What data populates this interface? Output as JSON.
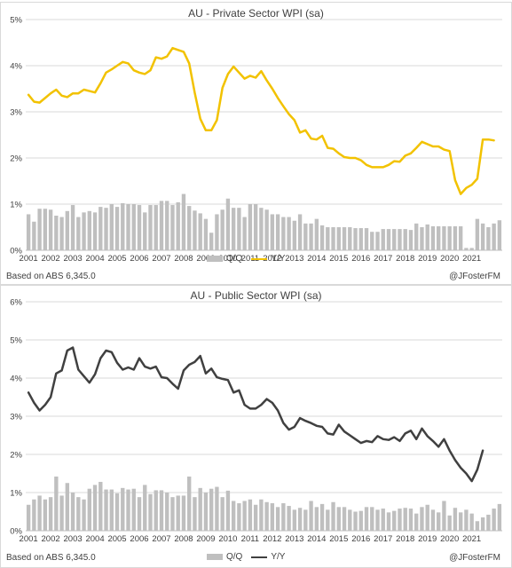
{
  "chart_data": [
    {
      "type": "bar+line",
      "title": "AU - Private Sector WPI (sa)",
      "note_left": "Based on ABS 6,345.0",
      "note_right": "@JFosterFM",
      "y_ticks": [
        "0%",
        "1%",
        "2%",
        "3%",
        "4%",
        "5%"
      ],
      "ylim": [
        0,
        5
      ],
      "x_ticks": [
        "2001",
        "2002",
        "2003",
        "2004",
        "2005",
        "2006",
        "2007",
        "2008",
        "2009",
        "2010",
        "2011",
        "2012",
        "2013",
        "2014",
        "2015",
        "2016",
        "2017",
        "2018",
        "2019",
        "2020",
        "2021"
      ],
      "x_start": 2001.0,
      "x_step": 0.25,
      "grid": "horizontal",
      "legend_position": "bottom",
      "series": [
        {
          "name": "Q/Q",
          "kind": "bar",
          "color": "#bfbfbf",
          "values": [
            0.78,
            0.62,
            0.9,
            0.9,
            0.88,
            0.75,
            0.72,
            0.85,
            0.98,
            0.72,
            0.82,
            0.85,
            0.82,
            0.94,
            0.92,
            1.0,
            0.94,
            1.02,
            1.0,
            1.0,
            0.98,
            0.82,
            0.98,
            0.98,
            1.07,
            1.07,
            0.98,
            1.04,
            1.22,
            0.96,
            0.86,
            0.8,
            0.68,
            0.38,
            0.78,
            0.88,
            1.12,
            0.92,
            0.92,
            0.72,
            1.0,
            1.0,
            0.92,
            0.88,
            0.78,
            0.78,
            0.72,
            0.72,
            0.64,
            0.78,
            0.58,
            0.58,
            0.68,
            0.54,
            0.5,
            0.5,
            0.5,
            0.5,
            0.5,
            0.48,
            0.48,
            0.48,
            0.4,
            0.4,
            0.46,
            0.46,
            0.46,
            0.46,
            0.46,
            0.44,
            0.58,
            0.5,
            0.56,
            0.52,
            0.52,
            0.52,
            0.52,
            0.52,
            0.52,
            0.05,
            0.05,
            0.68,
            0.58,
            0.5,
            0.58,
            0.65
          ]
        },
        {
          "name": "Y/Y",
          "kind": "line",
          "color": "#f2c200",
          "values": [
            3.37,
            3.22,
            3.2,
            3.3,
            3.4,
            3.48,
            3.35,
            3.32,
            3.4,
            3.4,
            3.48,
            3.45,
            3.42,
            3.62,
            3.85,
            3.92,
            4.0,
            4.08,
            4.05,
            3.9,
            3.85,
            3.82,
            3.9,
            4.18,
            4.15,
            4.2,
            4.38,
            4.34,
            4.3,
            4.05,
            3.42,
            2.85,
            2.6,
            2.6,
            2.82,
            3.52,
            3.82,
            3.98,
            3.85,
            3.72,
            3.78,
            3.74,
            3.88,
            3.68,
            3.5,
            3.3,
            3.12,
            2.95,
            2.82,
            2.55,
            2.6,
            2.42,
            2.4,
            2.48,
            2.22,
            2.2,
            2.1,
            2.02,
            2.0,
            2.0,
            1.95,
            1.85,
            1.8,
            1.8,
            1.8,
            1.85,
            1.93,
            1.92,
            2.05,
            2.1,
            2.22,
            2.35,
            2.3,
            2.25,
            2.25,
            2.18,
            2.15,
            1.52,
            1.22,
            1.35,
            1.42,
            1.55,
            2.4,
            2.4,
            2.38
          ]
        }
      ]
    },
    {
      "type": "bar+line",
      "title": "AU - Public Sector WPI (sa)",
      "note_left": "Based on ABS 6,345.0",
      "note_right": "@JFosterFM",
      "y_ticks": [
        "0%",
        "1%",
        "2%",
        "3%",
        "4%",
        "5%",
        "6%"
      ],
      "ylim": [
        0,
        6
      ],
      "x_ticks": [
        "2001",
        "2002",
        "2003",
        "2004",
        "2005",
        "2006",
        "2007",
        "2008",
        "2009",
        "2010",
        "2011",
        "2012",
        "2013",
        "2014",
        "2015",
        "2016",
        "2017",
        "2018",
        "2019",
        "2020",
        "2021"
      ],
      "x_start": 2001.0,
      "x_step": 0.25,
      "grid": "horizontal",
      "legend_position": "bottom",
      "series": [
        {
          "name": "Q/Q",
          "kind": "bar",
          "color": "#bfbfbf",
          "values": [
            0.68,
            0.82,
            0.92,
            0.82,
            0.88,
            1.42,
            0.92,
            1.25,
            1.0,
            0.88,
            0.82,
            1.1,
            1.2,
            1.28,
            1.08,
            1.08,
            0.98,
            1.12,
            1.08,
            1.1,
            0.88,
            1.2,
            0.96,
            1.06,
            1.06,
            1.0,
            0.88,
            0.92,
            0.92,
            1.42,
            0.88,
            1.12,
            1.0,
            1.1,
            1.15,
            0.88,
            1.05,
            0.78,
            0.72,
            0.78,
            0.82,
            0.68,
            0.82,
            0.75,
            0.72,
            0.62,
            0.72,
            0.65,
            0.55,
            0.6,
            0.55,
            0.78,
            0.62,
            0.7,
            0.55,
            0.75,
            0.62,
            0.62,
            0.55,
            0.5,
            0.52,
            0.62,
            0.62,
            0.55,
            0.58,
            0.48,
            0.52,
            0.58,
            0.6,
            0.58,
            0.45,
            0.62,
            0.68,
            0.55,
            0.48,
            0.78,
            0.4,
            0.6,
            0.48,
            0.55,
            0.45,
            0.25,
            0.35,
            0.42,
            0.58,
            0.7
          ]
        },
        {
          "name": "Y/Y",
          "kind": "line",
          "color": "#404040",
          "values": [
            3.62,
            3.35,
            3.15,
            3.3,
            3.5,
            4.12,
            4.2,
            4.72,
            4.8,
            4.22,
            4.05,
            3.88,
            4.1,
            4.52,
            4.72,
            4.68,
            4.4,
            4.22,
            4.28,
            4.22,
            4.52,
            4.3,
            4.25,
            4.3,
            4.02,
            4.0,
            3.85,
            3.72,
            4.2,
            4.35,
            4.42,
            4.58,
            4.12,
            4.25,
            4.02,
            3.98,
            3.95,
            3.62,
            3.68,
            3.3,
            3.2,
            3.2,
            3.3,
            3.45,
            3.35,
            3.15,
            2.82,
            2.65,
            2.72,
            2.95,
            2.88,
            2.82,
            2.75,
            2.72,
            2.55,
            2.52,
            2.78,
            2.6,
            2.5,
            2.4,
            2.3,
            2.35,
            2.32,
            2.48,
            2.4,
            2.38,
            2.45,
            2.35,
            2.55,
            2.62,
            2.4,
            2.68,
            2.48,
            2.35,
            2.2,
            2.4,
            2.1,
            1.85,
            1.65,
            1.5,
            1.3,
            1.6,
            2.1
          ]
        }
      ]
    }
  ]
}
